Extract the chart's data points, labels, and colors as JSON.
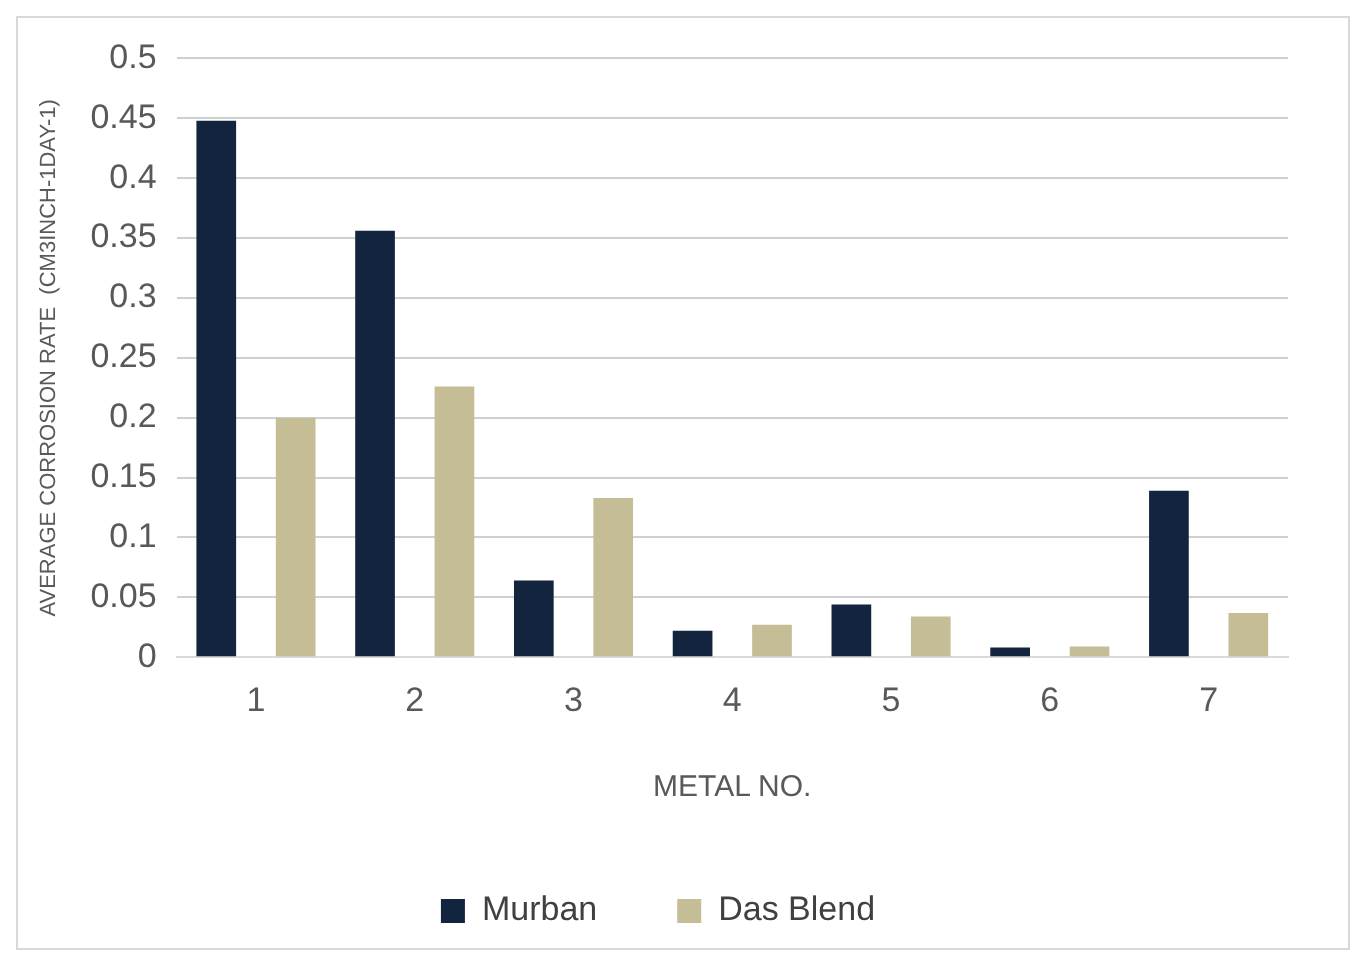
{
  "chart_data": {
    "type": "bar",
    "xlabel": "METAL NO.",
    "ylabel": "AVERAGE CORROSION RATE  (CM3INCH-1DAY-1)",
    "categories": [
      "1",
      "2",
      "3",
      "4",
      "5",
      "6",
      "7"
    ],
    "series": [
      {
        "name": "Murban",
        "color": "#13243f",
        "values": [
          0.448,
          0.356,
          0.064,
          0.022,
          0.044,
          0.008,
          0.139
        ]
      },
      {
        "name": "Das Blend",
        "color": "#c5bd96",
        "values": [
          0.2,
          0.226,
          0.133,
          0.027,
          0.034,
          0.009,
          0.037
        ]
      }
    ],
    "ylim": [
      0,
      0.5
    ],
    "yticks": [
      0,
      0.05,
      0.1,
      0.15,
      0.2,
      0.25,
      0.3,
      0.35,
      0.4,
      0.45,
      0.5
    ],
    "grid": "y",
    "legend": "bottom"
  }
}
